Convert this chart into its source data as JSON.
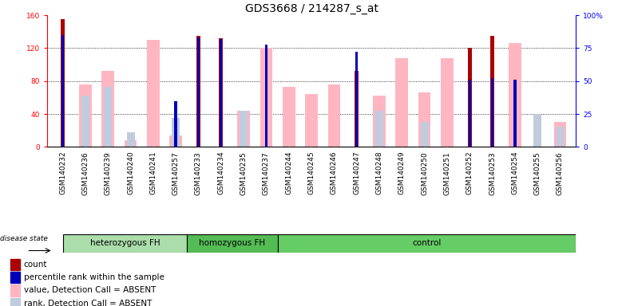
{
  "title": "GDS3668 / 214287_s_at",
  "samples": [
    "GSM140232",
    "GSM140236",
    "GSM140239",
    "GSM140240",
    "GSM140241",
    "GSM140257",
    "GSM140233",
    "GSM140234",
    "GSM140235",
    "GSM140237",
    "GSM140244",
    "GSM140245",
    "GSM140246",
    "GSM140247",
    "GSM140248",
    "GSM140249",
    "GSM140250",
    "GSM140251",
    "GSM140252",
    "GSM140253",
    "GSM140254",
    "GSM140255",
    "GSM140256"
  ],
  "count": [
    155,
    0,
    0,
    0,
    0,
    0,
    135,
    132,
    0,
    0,
    0,
    0,
    0,
    92,
    0,
    0,
    0,
    0,
    120,
    135,
    0,
    0,
    0
  ],
  "percentile": [
    85,
    0,
    0,
    0,
    0,
    35,
    83,
    82,
    0,
    78,
    0,
    0,
    0,
    72,
    0,
    0,
    0,
    0,
    51,
    52,
    51,
    0,
    0
  ],
  "value_absent": [
    0,
    76,
    92,
    8,
    130,
    14,
    0,
    0,
    44,
    120,
    73,
    64,
    76,
    0,
    62,
    108,
    66,
    108,
    0,
    0,
    126,
    0,
    30
  ],
  "rank_absent": [
    0,
    62,
    73,
    18,
    0,
    35,
    0,
    0,
    44,
    0,
    0,
    0,
    0,
    0,
    44,
    0,
    30,
    0,
    0,
    0,
    0,
    40,
    25
  ],
  "ylim_left": [
    0,
    160
  ],
  "ylim_right": [
    0,
    100
  ],
  "yticks_left": [
    0,
    40,
    80,
    120,
    160
  ],
  "yticks_right": [
    0,
    25,
    50,
    75,
    100
  ],
  "ytick_labels_right": [
    "0",
    "25",
    "50",
    "75",
    "100%"
  ],
  "count_color": "#AA0000",
  "percentile_color": "#0000BB",
  "value_absent_color": "#FFB6C1",
  "rank_absent_color": "#C0CCDD",
  "group_data": [
    {
      "label": "heterozygous FH",
      "start": 0,
      "end": 5,
      "color": "#AADDAA"
    },
    {
      "label": "homozygous FH",
      "start": 6,
      "end": 9,
      "color": "#66BB66"
    },
    {
      "label": "control",
      "start": 10,
      "end": 22,
      "color": "#66DD66"
    }
  ],
  "title_fontsize": 10,
  "tick_fontsize": 6.5,
  "legend_fontsize": 7.5
}
